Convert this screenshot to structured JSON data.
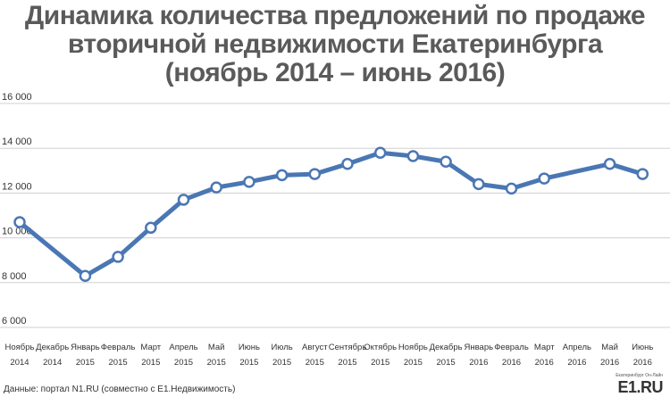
{
  "title": {
    "line1": "Динамика количества предложений по продаже",
    "line2": "вторичной недвижимости Екатеринбурга",
    "line3": "(ноябрь 2014 – июнь 2016)"
  },
  "source": "Данные: портал N1.RU (совместно с E1.Недвижимость)",
  "logo": {
    "small": "Екатеринбург Он-Лайн",
    "main": "E1.RU"
  },
  "colors": {
    "line": "#4a77b4",
    "marker_fill": "#ffffff",
    "grid": "#d0d0d0",
    "text": "#333333",
    "title": "#5a5a5a"
  },
  "chart_data": {
    "type": "line",
    "ylim": [
      6000,
      16000
    ],
    "yticks": [
      6000,
      8000,
      10000,
      12000,
      14000,
      16000
    ],
    "ytick_labels": [
      "6 000",
      "8 000",
      "10 000",
      "12 000",
      "14 000",
      "16 000"
    ],
    "grid": true,
    "categories": [
      [
        "Ноябрь",
        "2014"
      ],
      [
        "Декабрь",
        "2014"
      ],
      [
        "Январь",
        "2015"
      ],
      [
        "Февраль",
        "2015"
      ],
      [
        "Март",
        "2015"
      ],
      [
        "Апрель",
        "2015"
      ],
      [
        "Май",
        "2015"
      ],
      [
        "Июнь",
        "2015"
      ],
      [
        "Июль",
        "2015"
      ],
      [
        "Август",
        "2015"
      ],
      [
        "Сентябрь",
        "2015"
      ],
      [
        "Октябрь",
        "2015"
      ],
      [
        "Ноябрь",
        "2015"
      ],
      [
        "Декабрь",
        "2015"
      ],
      [
        "Январь",
        "2016"
      ],
      [
        "Февраль",
        "2016"
      ],
      [
        "Март",
        "2016"
      ],
      [
        "Апрель",
        "2016"
      ],
      [
        "Май",
        "2016"
      ],
      [
        "Июнь",
        "2016"
      ]
    ],
    "series": [
      {
        "points": [
          {
            "i": 0,
            "v": 10700
          },
          {
            "i": 2,
            "v": 8300
          },
          {
            "i": 3,
            "v": 9150
          },
          {
            "i": 4,
            "v": 10450
          },
          {
            "i": 5,
            "v": 11700
          },
          {
            "i": 6,
            "v": 12250
          },
          {
            "i": 7,
            "v": 12500
          },
          {
            "i": 8,
            "v": 12800
          },
          {
            "i": 9,
            "v": 12850
          },
          {
            "i": 10,
            "v": 13300
          },
          {
            "i": 11,
            "v": 13800
          },
          {
            "i": 12,
            "v": 13650
          },
          {
            "i": 13,
            "v": 13400
          },
          {
            "i": 14,
            "v": 12400
          },
          {
            "i": 15,
            "v": 12200
          },
          {
            "i": 16,
            "v": 12650
          },
          {
            "i": 18,
            "v": 13300
          },
          {
            "i": 19,
            "v": 12850
          }
        ]
      }
    ]
  }
}
